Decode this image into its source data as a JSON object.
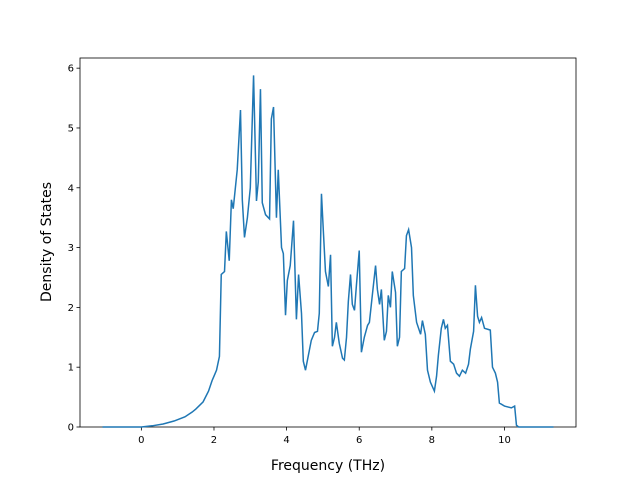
{
  "chart_data": {
    "type": "line",
    "x_label": "Frequency (THz)",
    "y_label": "Density of States",
    "x": [
      -1.07,
      -0.5,
      0,
      0.3,
      0.6,
      0.9,
      1.2,
      1.4,
      1.5,
      1.7,
      1.85,
      1.95,
      2.0,
      2.07,
      2.15,
      2.2,
      2.29,
      2.34,
      2.42,
      2.48,
      2.53,
      2.64,
      2.73,
      2.78,
      2.84,
      2.92,
      3.0,
      3.09,
      3.17,
      3.22,
      3.28,
      3.33,
      3.42,
      3.53,
      3.58,
      3.64,
      3.72,
      3.77,
      3.86,
      3.91,
      3.97,
      4.02,
      4.1,
      4.19,
      4.27,
      4.33,
      4.41,
      4.46,
      4.52,
      4.6,
      4.68,
      4.77,
      4.85,
      4.9,
      4.96,
      5.01,
      5.07,
      5.15,
      5.21,
      5.26,
      5.32,
      5.37,
      5.45,
      5.54,
      5.59,
      5.65,
      5.7,
      5.76,
      5.81,
      5.87,
      5.92,
      6.0,
      6.06,
      6.14,
      6.23,
      6.28,
      6.36,
      6.45,
      6.5,
      6.56,
      6.61,
      6.69,
      6.75,
      6.8,
      6.86,
      6.91,
      7.0,
      7.05,
      7.11,
      7.16,
      7.25,
      7.3,
      7.36,
      7.44,
      7.49,
      7.58,
      7.69,
      7.74,
      7.82,
      7.88,
      7.96,
      8.07,
      8.13,
      8.18,
      8.26,
      8.32,
      8.37,
      8.43,
      8.51,
      8.6,
      8.68,
      8.76,
      8.84,
      8.93,
      9.01,
      9.06,
      9.15,
      9.2,
      9.26,
      9.31,
      9.37,
      9.45,
      9.56,
      9.61,
      9.67,
      9.75,
      9.81,
      9.86,
      10.0,
      10.19,
      10.28,
      10.33,
      10.39,
      11.35
    ],
    "series": [
      {
        "color": "#1f77b4",
        "values": [
          0,
          0,
          0,
          0.02,
          0.05,
          0.1,
          0.17,
          0.25,
          0.3,
          0.42,
          0.6,
          0.78,
          0.85,
          0.95,
          1.18,
          2.55,
          2.6,
          3.27,
          2.78,
          3.8,
          3.65,
          4.3,
          5.3,
          3.8,
          3.17,
          3.5,
          4.0,
          5.88,
          3.78,
          4.1,
          5.65,
          3.75,
          3.55,
          3.48,
          5.15,
          5.35,
          3.5,
          4.3,
          3.0,
          2.9,
          1.87,
          2.45,
          2.7,
          3.45,
          1.8,
          2.55,
          1.9,
          1.1,
          0.95,
          1.2,
          1.45,
          1.58,
          1.6,
          1.9,
          3.9,
          3.3,
          2.6,
          2.35,
          2.88,
          1.35,
          1.5,
          1.75,
          1.4,
          1.15,
          1.12,
          1.5,
          2.1,
          2.55,
          2.05,
          1.95,
          2.35,
          2.95,
          1.25,
          1.5,
          1.7,
          1.75,
          2.2,
          2.7,
          2.3,
          2.05,
          2.3,
          1.45,
          1.6,
          2.2,
          2.0,
          2.6,
          2.25,
          1.35,
          1.5,
          2.6,
          2.65,
          3.2,
          3.3,
          3.0,
          2.2,
          1.75,
          1.55,
          1.78,
          1.55,
          0.95,
          0.75,
          0.6,
          0.85,
          1.2,
          1.65,
          1.8,
          1.65,
          1.7,
          1.1,
          1.05,
          0.9,
          0.85,
          0.95,
          0.9,
          1.05,
          1.3,
          1.6,
          2.37,
          1.85,
          1.75,
          1.83,
          1.65,
          1.63,
          1.62,
          1.0,
          0.9,
          0.75,
          0.4,
          0.35,
          0.32,
          0.35,
          0.03,
          0,
          0
        ]
      }
    ],
    "xlim": [
      -1.69,
      11.97
    ],
    "ylim": [
      0,
      6.17
    ],
    "xticks": [
      0,
      2,
      4,
      6,
      8,
      10
    ],
    "yticks": [
      0,
      1,
      2,
      3,
      4,
      5,
      6
    ]
  }
}
